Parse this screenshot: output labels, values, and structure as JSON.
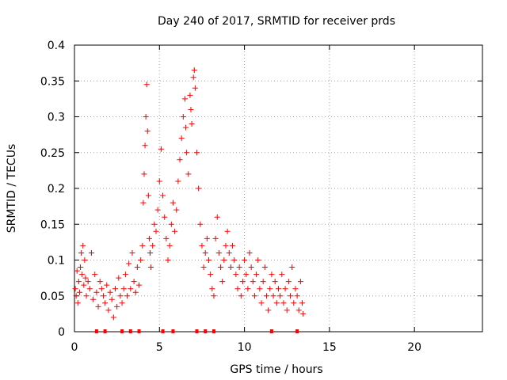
{
  "chart_data": {
    "type": "scatter",
    "title": "Day 240 of 2017, SRMTID for receiver prds",
    "xlabel": "GPS time / hours",
    "ylabel": "SRMTID / TECUs",
    "xlim": [
      0,
      24
    ],
    "ylim": [
      0,
      0.4
    ],
    "xticks": [
      0,
      5,
      10,
      15,
      20
    ],
    "yticks": [
      0,
      0.05,
      0.1,
      0.15,
      0.2,
      0.25,
      0.3,
      0.35,
      0.4
    ],
    "xtick_labels": [
      "0",
      "5",
      "10",
      "15",
      "20"
    ],
    "ytick_labels": [
      "0",
      "0.05",
      "0.1",
      "0.15",
      "0.2",
      "0.25",
      "0.3",
      "0.35",
      "0.4"
    ],
    "grid": true,
    "marker_color": "#ff0000",
    "marker": "+",
    "series": [
      {
        "name": "SRMTID",
        "points": [
          [
            0.05,
            0.06
          ],
          [
            0.1,
            0.05
          ],
          [
            0.15,
            0.085
          ],
          [
            0.2,
            0.04
          ],
          [
            0.25,
            0.07
          ],
          [
            0.3,
            0.055
          ],
          [
            0.35,
            0.09
          ],
          [
            0.4,
            0.11
          ],
          [
            0.45,
            0.08
          ],
          [
            0.5,
            0.12
          ],
          [
            0.55,
            0.065
          ],
          [
            0.6,
            0.1
          ],
          [
            0.65,
            0.075
          ],
          [
            0.7,
            0.05
          ],
          [
            0.8,
            0.07
          ],
          [
            0.9,
            0.06
          ],
          [
            1.0,
            0.11
          ],
          [
            1.1,
            0.045
          ],
          [
            1.2,
            0.08
          ],
          [
            1.3,
            0.055
          ],
          [
            1.4,
            0.035
          ],
          [
            1.5,
            0.07
          ],
          [
            1.6,
            0.06
          ],
          [
            1.7,
            0.05
          ],
          [
            1.8,
            0.04
          ],
          [
            1.9,
            0.065
          ],
          [
            2.0,
            0.03
          ],
          [
            2.1,
            0.055
          ],
          [
            2.2,
            0.045
          ],
          [
            2.3,
            0.02
          ],
          [
            2.4,
            0.06
          ],
          [
            2.5,
            0.035
          ],
          [
            2.6,
            0.075
          ],
          [
            2.7,
            0.05
          ],
          [
            2.8,
            0.04
          ],
          [
            2.9,
            0.06
          ],
          [
            3.0,
            0.08
          ],
          [
            3.1,
            0.05
          ],
          [
            3.2,
            0.095
          ],
          [
            3.3,
            0.06
          ],
          [
            3.4,
            0.11
          ],
          [
            3.5,
            0.07
          ],
          [
            3.6,
            0.055
          ],
          [
            3.7,
            0.09
          ],
          [
            3.8,
            0.065
          ],
          [
            3.9,
            0.1
          ],
          [
            4.0,
            0.12
          ],
          [
            4.05,
            0.18
          ],
          [
            4.1,
            0.22
          ],
          [
            4.15,
            0.26
          ],
          [
            4.2,
            0.3
          ],
          [
            4.25,
            0.345
          ],
          [
            4.3,
            0.28
          ],
          [
            4.35,
            0.19
          ],
          [
            4.4,
            0.13
          ],
          [
            4.45,
            0.11
          ],
          [
            4.5,
            0.09
          ],
          [
            4.6,
            0.12
          ],
          [
            4.7,
            0.15
          ],
          [
            4.8,
            0.14
          ],
          [
            4.9,
            0.17
          ],
          [
            5.0,
            0.21
          ],
          [
            5.1,
            0.255
          ],
          [
            5.2,
            0.19
          ],
          [
            5.3,
            0.16
          ],
          [
            5.4,
            0.13
          ],
          [
            5.5,
            0.1
          ],
          [
            5.6,
            0.12
          ],
          [
            5.7,
            0.15
          ],
          [
            5.8,
            0.18
          ],
          [
            5.9,
            0.14
          ],
          [
            6.0,
            0.17
          ],
          [
            6.1,
            0.21
          ],
          [
            6.2,
            0.24
          ],
          [
            6.3,
            0.27
          ],
          [
            6.4,
            0.3
          ],
          [
            6.5,
            0.325
          ],
          [
            6.55,
            0.285
          ],
          [
            6.6,
            0.25
          ],
          [
            6.7,
            0.22
          ],
          [
            6.8,
            0.33
          ],
          [
            6.85,
            0.31
          ],
          [
            6.9,
            0.29
          ],
          [
            7.0,
            0.355
          ],
          [
            7.05,
            0.365
          ],
          [
            7.1,
            0.34
          ],
          [
            7.2,
            0.25
          ],
          [
            7.3,
            0.2
          ],
          [
            7.4,
            0.15
          ],
          [
            7.5,
            0.12
          ],
          [
            7.6,
            0.09
          ],
          [
            7.7,
            0.11
          ],
          [
            7.8,
            0.13
          ],
          [
            7.9,
            0.1
          ],
          [
            8.0,
            0.08
          ],
          [
            8.1,
            0.06
          ],
          [
            8.2,
            0.05
          ],
          [
            8.3,
            0.13
          ],
          [
            8.4,
            0.16
          ],
          [
            8.5,
            0.11
          ],
          [
            8.6,
            0.09
          ],
          [
            8.7,
            0.07
          ],
          [
            8.8,
            0.1
          ],
          [
            8.9,
            0.12
          ],
          [
            9.0,
            0.14
          ],
          [
            9.1,
            0.11
          ],
          [
            9.2,
            0.09
          ],
          [
            9.3,
            0.12
          ],
          [
            9.4,
            0.1
          ],
          [
            9.5,
            0.08
          ],
          [
            9.6,
            0.06
          ],
          [
            9.7,
            0.09
          ],
          [
            9.8,
            0.05
          ],
          [
            9.9,
            0.07
          ],
          [
            10.0,
            0.1
          ],
          [
            10.1,
            0.08
          ],
          [
            10.2,
            0.06
          ],
          [
            10.3,
            0.11
          ],
          [
            10.4,
            0.09
          ],
          [
            10.5,
            0.07
          ],
          [
            10.6,
            0.05
          ],
          [
            10.7,
            0.08
          ],
          [
            10.8,
            0.1
          ],
          [
            10.9,
            0.06
          ],
          [
            11.0,
            0.04
          ],
          [
            11.1,
            0.07
          ],
          [
            11.2,
            0.09
          ],
          [
            11.3,
            0.05
          ],
          [
            11.4,
            0.03
          ],
          [
            11.5,
            0.06
          ],
          [
            11.6,
            0.08
          ],
          [
            11.7,
            0.05
          ],
          [
            11.8,
            0.07
          ],
          [
            11.9,
            0.04
          ],
          [
            12.0,
            0.06
          ],
          [
            12.1,
            0.05
          ],
          [
            12.2,
            0.08
          ],
          [
            12.3,
            0.04
          ],
          [
            12.4,
            0.06
          ],
          [
            12.5,
            0.03
          ],
          [
            12.6,
            0.07
          ],
          [
            12.7,
            0.05
          ],
          [
            12.8,
            0.09
          ],
          [
            12.9,
            0.04
          ],
          [
            13.0,
            0.06
          ],
          [
            13.1,
            0.05
          ],
          [
            13.2,
            0.03
          ],
          [
            13.3,
            0.07
          ],
          [
            13.4,
            0.04
          ],
          [
            13.45,
            0.025
          ]
        ]
      }
    ],
    "axis_markers_x": [
      1.3,
      1.8,
      2.8,
      3.3,
      3.8,
      5.2,
      5.8,
      7.2,
      7.7,
      8.2,
      11.6,
      13.1
    ]
  }
}
